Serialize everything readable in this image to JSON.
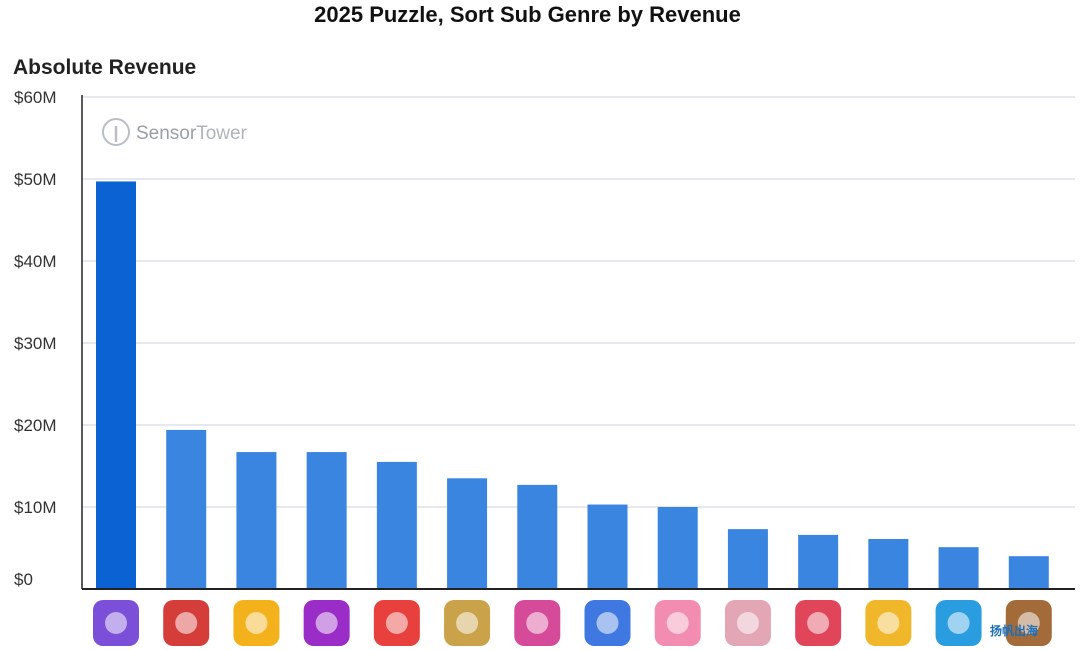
{
  "header": {
    "title": "2025 Puzzle, Sort Sub Genre by Revenue",
    "subtitle": "Absolute Revenue"
  },
  "watermark": {
    "brand_light": "Sensor",
    "brand_regular": "Tower",
    "corner_text": "扬帆出海"
  },
  "colors": {
    "bar_primary": "#0a62d3",
    "bar_secondary": "#3a85df",
    "grid": "#d6dbe3",
    "axis": "#222222"
  },
  "chart_data": {
    "type": "bar",
    "title": "2025 Puzzle, Sort Sub Genre by Revenue",
    "subtitle": "Absolute Revenue",
    "ylim": [
      0,
      60
    ],
    "y_unit": "$M",
    "yticks": [
      "$0",
      "$10M",
      "$20M",
      "$30M",
      "$40M",
      "$50M",
      "$60M"
    ],
    "grid": true,
    "x_tick_icons": [
      "ball-sort-tubes-app-icon",
      "colorful-cubes-app-icon",
      "yellow-pig-app-icon",
      "purple-figure-app-icon",
      "red-heart-app-icon",
      "bus-parking-app-icon",
      "pink-character-app-icon",
      "color-sort-stack-app-icon",
      "frog-apple-app-icon",
      "pink-scene-app-icon",
      "sweet-candy-app-icon",
      "yellow-school-bus-app-icon",
      "colorful-hexagon-app-icon",
      "wooden-sort-shelf-app-icon"
    ],
    "values": [
      49.7,
      19.4,
      16.7,
      16.7,
      15.5,
      13.5,
      12.7,
      10.3,
      10.0,
      7.3,
      6.6,
      6.1,
      5.1,
      4.0
    ]
  }
}
